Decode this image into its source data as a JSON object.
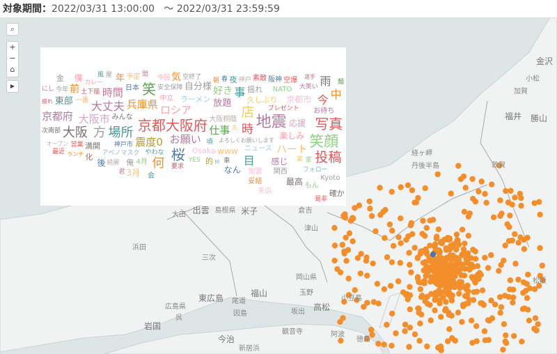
{
  "header": {
    "label": "対象期間：",
    "start": "2022/03/31 13:00:00",
    "separator": "〜",
    "end": "2022/03/31 23:59:59"
  },
  "map_controls": {
    "search_icon": "⌕",
    "zoom_in": "+",
    "zoom_out": "−",
    "home_icon": "⌂",
    "play_icon": "▶"
  },
  "marker_color": "#f28e2b",
  "highlight_marker_color": "#4e79a7",
  "places": [
    "金沢",
    "小松",
    "加賀",
    "福井",
    "勝山",
    "敦賀",
    "経ヶ岬",
    "丹後半島",
    "出雲",
    "島根県",
    "米子",
    "倉吉",
    "大田",
    "浜田",
    "三次",
    "津山",
    "岡山県",
    "福山",
    "東広島",
    "広島県",
    "尾道",
    "玉野",
    "高松",
    "坂出",
    "小豆島",
    "呉",
    "因島",
    "岩国",
    "観音寺",
    "今治",
    "新居浜",
    "阿波",
    "徳島",
    "松阪"
  ],
  "word_cloud": [
    {
      "text": "金",
      "color": "#9d9d9d"
    },
    {
      "text": "風",
      "color": "#499894"
    },
    {
      "text": "屋",
      "color": "#9d9d9d"
    },
    {
      "text": "年",
      "color": "#f28e2b"
    },
    {
      "text": "予定",
      "color": "#ffbe7d"
    },
    {
      "text": "間",
      "color": "#d37295"
    },
    {
      "text": "今回",
      "color": "#ff9da7"
    },
    {
      "text": "気",
      "color": "#f28e2b"
    },
    {
      "text": "空終了",
      "color": "#9d9d9d"
    },
    {
      "text": "朝",
      "color": "#f28e2b"
    },
    {
      "text": "春",
      "color": "#4e79a7"
    },
    {
      "text": "夜",
      "color": "#499894"
    },
    {
      "text": "神戸",
      "color": "#bab0ac"
    },
    {
      "text": "素敵",
      "color": "#e15759"
    },
    {
      "text": "阪神",
      "color": "#4e79a7"
    },
    {
      "text": "空爆",
      "color": "#e15759"
    },
    {
      "text": "選手",
      "color": "#b07aa1"
    },
    {
      "text": "麺",
      "color": "#59a14f"
    },
    {
      "text": "にし",
      "color": "#d37295"
    },
    {
      "text": "今年",
      "color": "#9d9d9d"
    },
    {
      "text": "前",
      "color": "#f28e2b"
    },
    {
      "text": "僕",
      "color": "#ff9da7"
    },
    {
      "text": "カレー",
      "color": "#ff9da7"
    },
    {
      "text": "土下座",
      "color": "#e15759"
    },
    {
      "text": "時間",
      "color": "#d37295"
    },
    {
      "text": "日本",
      "color": "#4e79a7"
    },
    {
      "text": "笑",
      "color": "#59a14f"
    },
    {
      "text": "安全保障",
      "color": "#9d9d9d"
    },
    {
      "text": "自分様",
      "color": "#9d9d9d"
    },
    {
      "text": "好き",
      "color": "#8cd17d"
    },
    {
      "text": "揺れ",
      "color": "#9d9d9d"
    },
    {
      "text": "NATO",
      "color": "#8cd17d"
    },
    {
      "text": "大笑い",
      "color": "#b07aa1"
    },
    {
      "text": "雨",
      "color": "#79706e"
    },
    {
      "text": "中",
      "color": "#f28e2b"
    },
    {
      "text": "今",
      "color": "#e15759"
    },
    {
      "text": "疲れ",
      "color": "#e15759"
    },
    {
      "text": "東部",
      "color": "#499894"
    },
    {
      "text": "一番",
      "color": "#ffbe7d"
    },
    {
      "text": "大丈夫",
      "color": "#b07aa1"
    },
    {
      "text": "兵庫県",
      "color": "#f28e2b"
    },
    {
      "text": "中立",
      "color": "#ff9da7"
    },
    {
      "text": "ロシア",
      "color": "#ff9da7"
    },
    {
      "text": "ラーメン",
      "color": "#a0cbe8"
    },
    {
      "text": "放題",
      "color": "#b07aa1"
    },
    {
      "text": "事",
      "color": "#499894"
    },
    {
      "text": "久しぶり",
      "color": "#f1ce63"
    },
    {
      "text": "プレゼント",
      "color": "#e15759"
    },
    {
      "text": "京都市",
      "color": "#fabfd2"
    },
    {
      "text": "お待ち",
      "color": "#b07aa1"
    },
    {
      "text": "京都府",
      "color": "#b07aa1"
    },
    {
      "text": "大阪市",
      "color": "#d4a6c8"
    },
    {
      "text": "みんな",
      "color": "#79706e"
    },
    {
      "text": "京都大阪府",
      "color": "#e15759"
    },
    {
      "text": "大阪桐蔭",
      "color": "#bab0ac"
    },
    {
      "text": "店",
      "color": "#f1ce63"
    },
    {
      "text": "地震",
      "color": "#b07aa1"
    },
    {
      "text": "応援",
      "color": "#d4a6c8"
    },
    {
      "text": "写真",
      "color": "#e15759"
    },
    {
      "text": "笑顔",
      "color": "#8cd17d"
    },
    {
      "text": "次南部",
      "color": "#79706e"
    },
    {
      "text": "大阪",
      "color": "#79706e"
    },
    {
      "text": "方",
      "color": "#9d9d9d"
    },
    {
      "text": "場所",
      "color": "#499894"
    },
    {
      "text": "震度0",
      "color": "#b6992d"
    },
    {
      "text": "お願い",
      "color": "#b07aa1"
    },
    {
      "text": "桜",
      "color": "#4e79a7"
    },
    {
      "text": "仕事",
      "color": "#59a14f"
    },
    {
      "text": "先",
      "color": "#f1ce63"
    },
    {
      "text": "よろしくお願いします",
      "color": "#9d9d9d"
    },
    {
      "text": "楽しみ",
      "color": "#ff9da7"
    },
    {
      "text": "ハート",
      "color": "#ffbe7d"
    },
    {
      "text": "投稿",
      "color": "#e15759"
    },
    {
      "text": "オープン",
      "color": "#bab0ac"
    },
    {
      "text": "最近",
      "color": "#e15759"
    },
    {
      "text": "営業",
      "color": "#e15759"
    },
    {
      "text": "満開",
      "color": "#79706e"
    },
    {
      "text": "アベノマスク",
      "color": "#86bcb6"
    },
    {
      "text": "神戸市",
      "color": "#4e79a7"
    },
    {
      "text": "やわな",
      "color": "#499894"
    },
    {
      "text": "何",
      "color": "#f28e2b"
    },
    {
      "text": "Osaka",
      "color": "#fabfd2"
    },
    {
      "text": "www",
      "color": "#ffbe7d"
    },
    {
      "text": "ニュース",
      "color": "#a0cbe8"
    },
    {
      "text": "時",
      "color": "#e15759"
    },
    {
      "text": "感じ",
      "color": "#b07aa1"
    },
    {
      "text": "フォロー",
      "color": "#86bcb6"
    },
    {
      "text": "案",
      "color": "#f1ce63"
    },
    {
      "text": "ランチ",
      "color": "#f28e2b"
    },
    {
      "text": "化",
      "color": "#9d7660"
    },
    {
      "text": "後",
      "color": "#4e79a7"
    },
    {
      "text": "綺麗",
      "color": "#bab0ac"
    },
    {
      "text": "俺",
      "color": "#9d9d9d"
    },
    {
      "text": "4月",
      "color": "#8cd17d"
    },
    {
      "text": "3月",
      "color": "#ffbe7d"
    },
    {
      "text": "会",
      "color": "#499894"
    },
    {
      "text": "要求",
      "color": "#e15759"
    },
    {
      "text": "YES",
      "color": "#8cd17d"
    },
    {
      "text": "的",
      "color": "#b6992d"
    },
    {
      "text": "M",
      "color": "#86bcb6"
    },
    {
      "text": "頃",
      "color": "#499894"
    },
    {
      "text": "車",
      "color": "#79706e"
    },
    {
      "text": "目",
      "color": "#499894"
    },
    {
      "text": "なん",
      "color": "#4e79a7"
    },
    {
      "text": "加盟",
      "color": "#fabfd2"
    },
    {
      "text": "関西",
      "color": "#9d9d9d"
    },
    {
      "text": "最高",
      "color": "#79706e"
    },
    {
      "text": "Kyoto",
      "color": "#9d9d9d"
    },
    {
      "text": "家",
      "color": "#8cd17d"
    },
    {
      "text": "もん",
      "color": "#8cd17d"
    },
    {
      "text": "確か",
      "color": "#79706e"
    },
    {
      "text": "是非",
      "color": "#e15759"
    },
    {
      "text": "君",
      "color": "#d37295"
    },
    {
      "text": "妥結",
      "color": "#f28e2b"
    },
    {
      "text": "来店",
      "color": "#fabfd2"
    }
  ]
}
